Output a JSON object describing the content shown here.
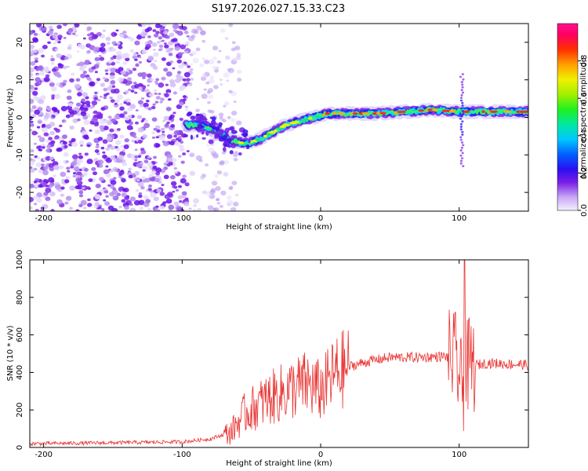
{
  "figure_title": "S197.2026.027.15.33.C23",
  "chart_data": [
    {
      "type": "heatmap",
      "name": "spectrogram",
      "xlabel": "Height of straight line (km)",
      "ylabel": "Frequency (Hz)",
      "xlim": [
        -210,
        150
      ],
      "ylim": [
        -25,
        25
      ],
      "xticks": [
        -200,
        -100,
        0,
        100
      ],
      "yticks": [
        -20,
        -10,
        0,
        10,
        20
      ],
      "colorbar": {
        "label": "Normalized spectral amplitude",
        "range": [
          0,
          1
        ],
        "ticks": [
          0.0,
          0.2,
          0.4,
          0.6,
          0.8
        ],
        "tick_labels": [
          "0.0",
          "0.2",
          "0.4",
          "0.6",
          "0.8"
        ]
      },
      "noise_region": {
        "x_from": -210,
        "x_to": -58,
        "dense_until": -95
      },
      "ridge": {
        "description": "dominant frequency track",
        "points": [
          {
            "x": -95,
            "y": -2
          },
          {
            "x": -85,
            "y": -2
          },
          {
            "x": -75,
            "y": -4
          },
          {
            "x": -65,
            "y": -6
          },
          {
            "x": -55,
            "y": -7
          },
          {
            "x": -45,
            "y": -6
          },
          {
            "x": -35,
            "y": -4
          },
          {
            "x": -25,
            "y": -2
          },
          {
            "x": -15,
            "y": -1
          },
          {
            "x": -5,
            "y": 0
          },
          {
            "x": 5,
            "y": 1
          },
          {
            "x": 20,
            "y": 1
          },
          {
            "x": 40,
            "y": 1
          },
          {
            "x": 60,
            "y": 1.5
          },
          {
            "x": 80,
            "y": 2
          },
          {
            "x": 100,
            "y": 1.5
          },
          {
            "x": 120,
            "y": 1.5
          },
          {
            "x": 150,
            "y": 1.5
          }
        ],
        "spike": {
          "x": 102,
          "y_min": -13,
          "y_max": 12
        }
      }
    },
    {
      "type": "line",
      "name": "snr",
      "xlabel": "Height of straight line (km)",
      "ylabel": "SNR (10 * v/v)",
      "xlim": [
        -210,
        150
      ],
      "ylim": [
        0,
        1000
      ],
      "xticks": [
        -200,
        -100,
        0,
        100
      ],
      "yticks": [
        0,
        200,
        400,
        600,
        800,
        1000
      ],
      "color": "#e8312f",
      "envelope": [
        {
          "x": -210,
          "y": 20
        },
        {
          "x": -150,
          "y": 25
        },
        {
          "x": -100,
          "y": 30
        },
        {
          "x": -80,
          "y": 45
        },
        {
          "x": -65,
          "y": 80
        },
        {
          "x": -55,
          "y": 180
        },
        {
          "x": -40,
          "y": 250
        },
        {
          "x": -25,
          "y": 300
        },
        {
          "x": -10,
          "y": 340
        },
        {
          "x": 0,
          "y": 300
        },
        {
          "x": 10,
          "y": 390
        },
        {
          "x": 20,
          "y": 430
        },
        {
          "x": 35,
          "y": 460
        },
        {
          "x": 50,
          "y": 480
        },
        {
          "x": 70,
          "y": 480
        },
        {
          "x": 90,
          "y": 485
        },
        {
          "x": 98,
          "y": 470
        },
        {
          "x": 102,
          "y": 300
        },
        {
          "x": 106,
          "y": 430
        },
        {
          "x": 120,
          "y": 450
        },
        {
          "x": 150,
          "y": 440
        }
      ],
      "peak": {
        "x": 104,
        "y": 1000
      }
    }
  ]
}
